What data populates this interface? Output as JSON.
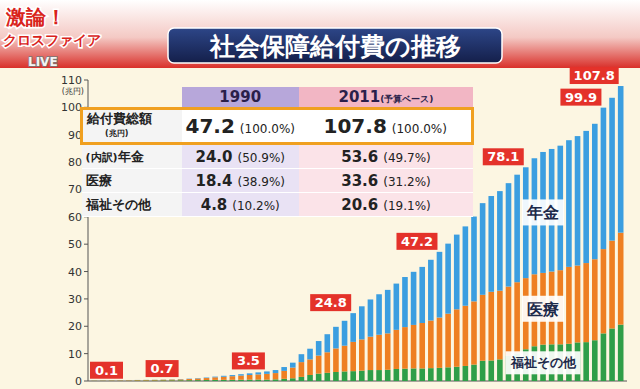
{
  "logo": {
    "lines": [
      "激論！",
      "クロスファイア"
    ],
    "live": "LIVE"
  },
  "table": {
    "columns": [
      {
        "label": "1990"
      },
      {
        "label": "2011",
        "note": "(予算ベース)"
      }
    ],
    "rows": [
      {
        "label": "給付費総額",
        "note": "(兆円)",
        "cells": [
          [
            "47.2",
            "(100.0%)"
          ],
          [
            "107.8",
            "(100.0%)"
          ]
        ]
      },
      {
        "prefix": "(内訳)",
        "label": "年金",
        "cells": [
          [
            "24.0",
            "(50.9%)"
          ],
          [
            "53.6",
            "(49.7%)"
          ]
        ]
      },
      {
        "label": "医療",
        "cells": [
          [
            "18.4",
            "(38.9%)"
          ],
          [
            "33.6",
            "(31.2%)"
          ]
        ]
      },
      {
        "label": "福祉その他",
        "cells": [
          [
            "4.8",
            "(10.2%)"
          ],
          [
            "20.6",
            "(19.1%)"
          ]
        ]
      }
    ]
  },
  "chart_data": {
    "type": "bar",
    "title": "社会保障給付費の推移",
    "y_label": "(兆円)",
    "stacked": true,
    "grid": false,
    "tick_labels": "y",
    "categories": [
      null,
      null,
      null,
      null,
      null,
      null,
      null,
      null,
      null,
      null,
      null,
      null,
      null,
      null,
      null,
      null,
      null,
      null,
      null,
      null,
      null,
      null,
      null,
      null,
      null,
      null,
      null,
      null,
      null,
      null,
      null,
      null,
      null,
      null,
      null,
      null,
      null,
      null,
      null,
      null,
      null,
      null,
      null,
      null,
      null,
      null,
      null,
      null,
      null,
      null,
      null,
      null,
      null,
      null,
      null,
      null,
      null,
      null,
      null,
      null,
      null,
      null
    ],
    "series": [
      {
        "name": "福祉その他",
        "color": "#2f9e48",
        "values": [
          0.04,
          0.06,
          0.07,
          0.08,
          0.09,
          0.2,
          0.2,
          0.21,
          0.23,
          0.25,
          0.27,
          0.3,
          0.33,
          0.36,
          0.4,
          0.43,
          0.45,
          0.48,
          0.5,
          0.52,
          0.5,
          0.6,
          0.8,
          1.0,
          1.5,
          2.2,
          2.7,
          3.0,
          3.3,
          3.5,
          3.6,
          3.8,
          4.0,
          4.0,
          4.1,
          4.4,
          4.5,
          4.6,
          4.6,
          4.7,
          4.8,
          5.0,
          5.2,
          5.5,
          6.0,
          7.4,
          7.5,
          7.9,
          9.2,
          10.1,
          11.6,
          12.7,
          13.3,
          13.4,
          13.4,
          13.6,
          14.1,
          14.2,
          14.9,
          17.4,
          19.2,
          20.6
        ]
      },
      {
        "name": "医療",
        "color": "#ee7f22",
        "values": [
          0.05,
          0.07,
          0.09,
          0.11,
          0.13,
          0.17,
          0.19,
          0.21,
          0.24,
          0.27,
          0.33,
          0.45,
          0.58,
          0.72,
          0.95,
          1.12,
          1.3,
          1.5,
          1.7,
          1.88,
          2.1,
          2.3,
          2.9,
          3.9,
          5.4,
          5.7,
          6.6,
          7.5,
          8.6,
          9.4,
          10.7,
          11.4,
          12.2,
          12.9,
          13.3,
          14.3,
          15.2,
          15.9,
          16.6,
          17.4,
          18.4,
          19.6,
          21.0,
          22.0,
          23.1,
          24.1,
          25.1,
          25.1,
          25.3,
          26.0,
          26.0,
          26.3,
          26.2,
          26.6,
          27.1,
          28.1,
          28.1,
          28.9,
          29.6,
          30.8,
          32.1,
          33.6
        ]
      },
      {
        "name": "年金",
        "color": "#3b9ee0",
        "values": [
          0.01,
          0.01,
          0.01,
          0.02,
          0.02,
          0.02,
          0.03,
          0.04,
          0.05,
          0.07,
          0.1,
          0.12,
          0.15,
          0.19,
          0.25,
          0.35,
          0.42,
          0.5,
          0.6,
          0.75,
          0.9,
          1.1,
          1.4,
          1.8,
          2.9,
          3.9,
          5.3,
          6.6,
          7.9,
          9.1,
          10.5,
          12.1,
          13.6,
          14.8,
          15.9,
          16.9,
          18.3,
          19.4,
          20.5,
          22.2,
          24.0,
          25.6,
          27.3,
          29.0,
          31.0,
          33.5,
          35.0,
          36.4,
          37.8,
          39.3,
          40.5,
          42.4,
          44.2,
          44.8,
          45.5,
          46.3,
          47.3,
          48.3,
          49.5,
          51.7,
          52.2,
          53.6
        ]
      }
    ],
    "annotations": [
      {
        "index": 0,
        "value": 0.1
      },
      {
        "index": 10,
        "value": 0.7
      },
      {
        "index": 20,
        "value": 3.5
      },
      {
        "index": 30,
        "value": 24.8
      },
      {
        "index": 40,
        "value": 47.2
      },
      {
        "index": 50,
        "value": 78.1
      },
      {
        "index": 59,
        "value": 99.9
      },
      {
        "index": 61,
        "value": 107.8
      }
    ],
    "ylim": [
      0,
      110
    ],
    "yticks": [
      0,
      10,
      20,
      30,
      40,
      50,
      60,
      70,
      80,
      90,
      100,
      110
    ]
  }
}
